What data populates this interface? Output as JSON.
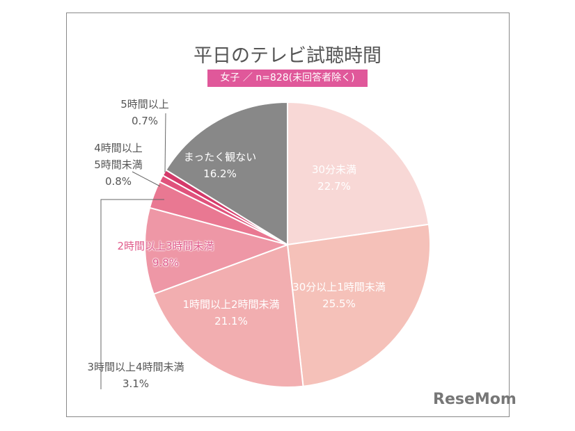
{
  "chart_data": {
    "type": "pie",
    "title": "平日のテレビ試聴時間",
    "subtitle": "女子 ／ n=828(未回答者除く)",
    "start": "top",
    "direction": "clockwise",
    "slices": [
      {
        "label": "30分未満",
        "value": 22.7,
        "value_label": "22.7%",
        "color": "#f8d8d6"
      },
      {
        "label": "30分以上1時間未満",
        "value": 25.5,
        "value_label": "25.5%",
        "color": "#f5c1b9"
      },
      {
        "label": "1時間以上2時間未満",
        "value": 21.1,
        "value_label": "21.1%",
        "color": "#f2aeb0"
      },
      {
        "label": "2時間以上3時間未満",
        "value": 9.8,
        "value_label": "9.8%",
        "color": "#ee97a6"
      },
      {
        "label": "3時間以上4時間未満",
        "value": 3.1,
        "value_label": "3.1%",
        "color": "#e97892"
      },
      {
        "label": "4時間以上\n5時間未満",
        "value": 0.8,
        "value_label": "0.8%",
        "color": "#e0527c"
      },
      {
        "label": "5時間以上",
        "value": 0.7,
        "value_label": "0.7%",
        "color": "#d43a6a"
      },
      {
        "label": "まったく観ない",
        "value": 16.2,
        "value_label": "16.2%",
        "color": "#888888"
      }
    ]
  },
  "logo": "ReseMom"
}
